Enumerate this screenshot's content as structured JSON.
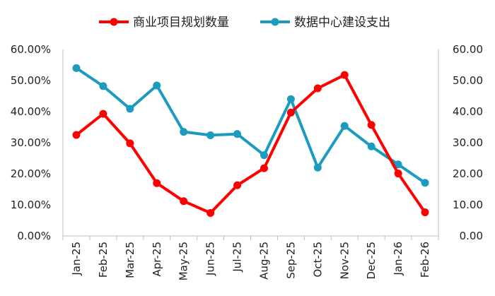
{
  "chart_data": {
    "type": "line",
    "title": "",
    "xlabel": "",
    "ylabel_left": "",
    "ylabel_right": "",
    "categories": [
      "Jan-25",
      "Feb-25",
      "Mar-25",
      "Apr-25",
      "May-25",
      "Jun-25",
      "Jul-25",
      "Aug-25",
      "Sep-25",
      "Oct-25",
      "Nov-25",
      "Dec-25",
      "Jan-26",
      "Feb-26"
    ],
    "y_left": {
      "ylim": [
        0,
        60
      ],
      "ticks": [
        "0.00%",
        "10.00%",
        "20.00%",
        "30.00%",
        "40.00%",
        "50.00%",
        "60.00%"
      ]
    },
    "y_right": {
      "ylim": [
        0,
        60
      ],
      "ticks": [
        "0.00",
        "10.00",
        "20.00",
        "30.00",
        "40.00",
        "50.00",
        "60.00"
      ]
    },
    "legend_position": "top-center",
    "grid": false,
    "series": [
      {
        "name": "商业项目规划数量",
        "axis": "left",
        "color": "#ff0000",
        "values": [
          32.5,
          39.3,
          29.8,
          17.0,
          11.2,
          7.4,
          16.3,
          21.8,
          39.7,
          47.5,
          51.8,
          35.7,
          20.1,
          7.6
        ]
      },
      {
        "name": "数据中心建设支出",
        "axis": "right",
        "color": "#1a9bbf",
        "values": [
          54.0,
          48.2,
          40.9,
          48.4,
          33.5,
          32.4,
          32.8,
          26.0,
          44.0,
          22.0,
          35.4,
          28.8,
          23.0,
          17.1
        ]
      }
    ]
  }
}
